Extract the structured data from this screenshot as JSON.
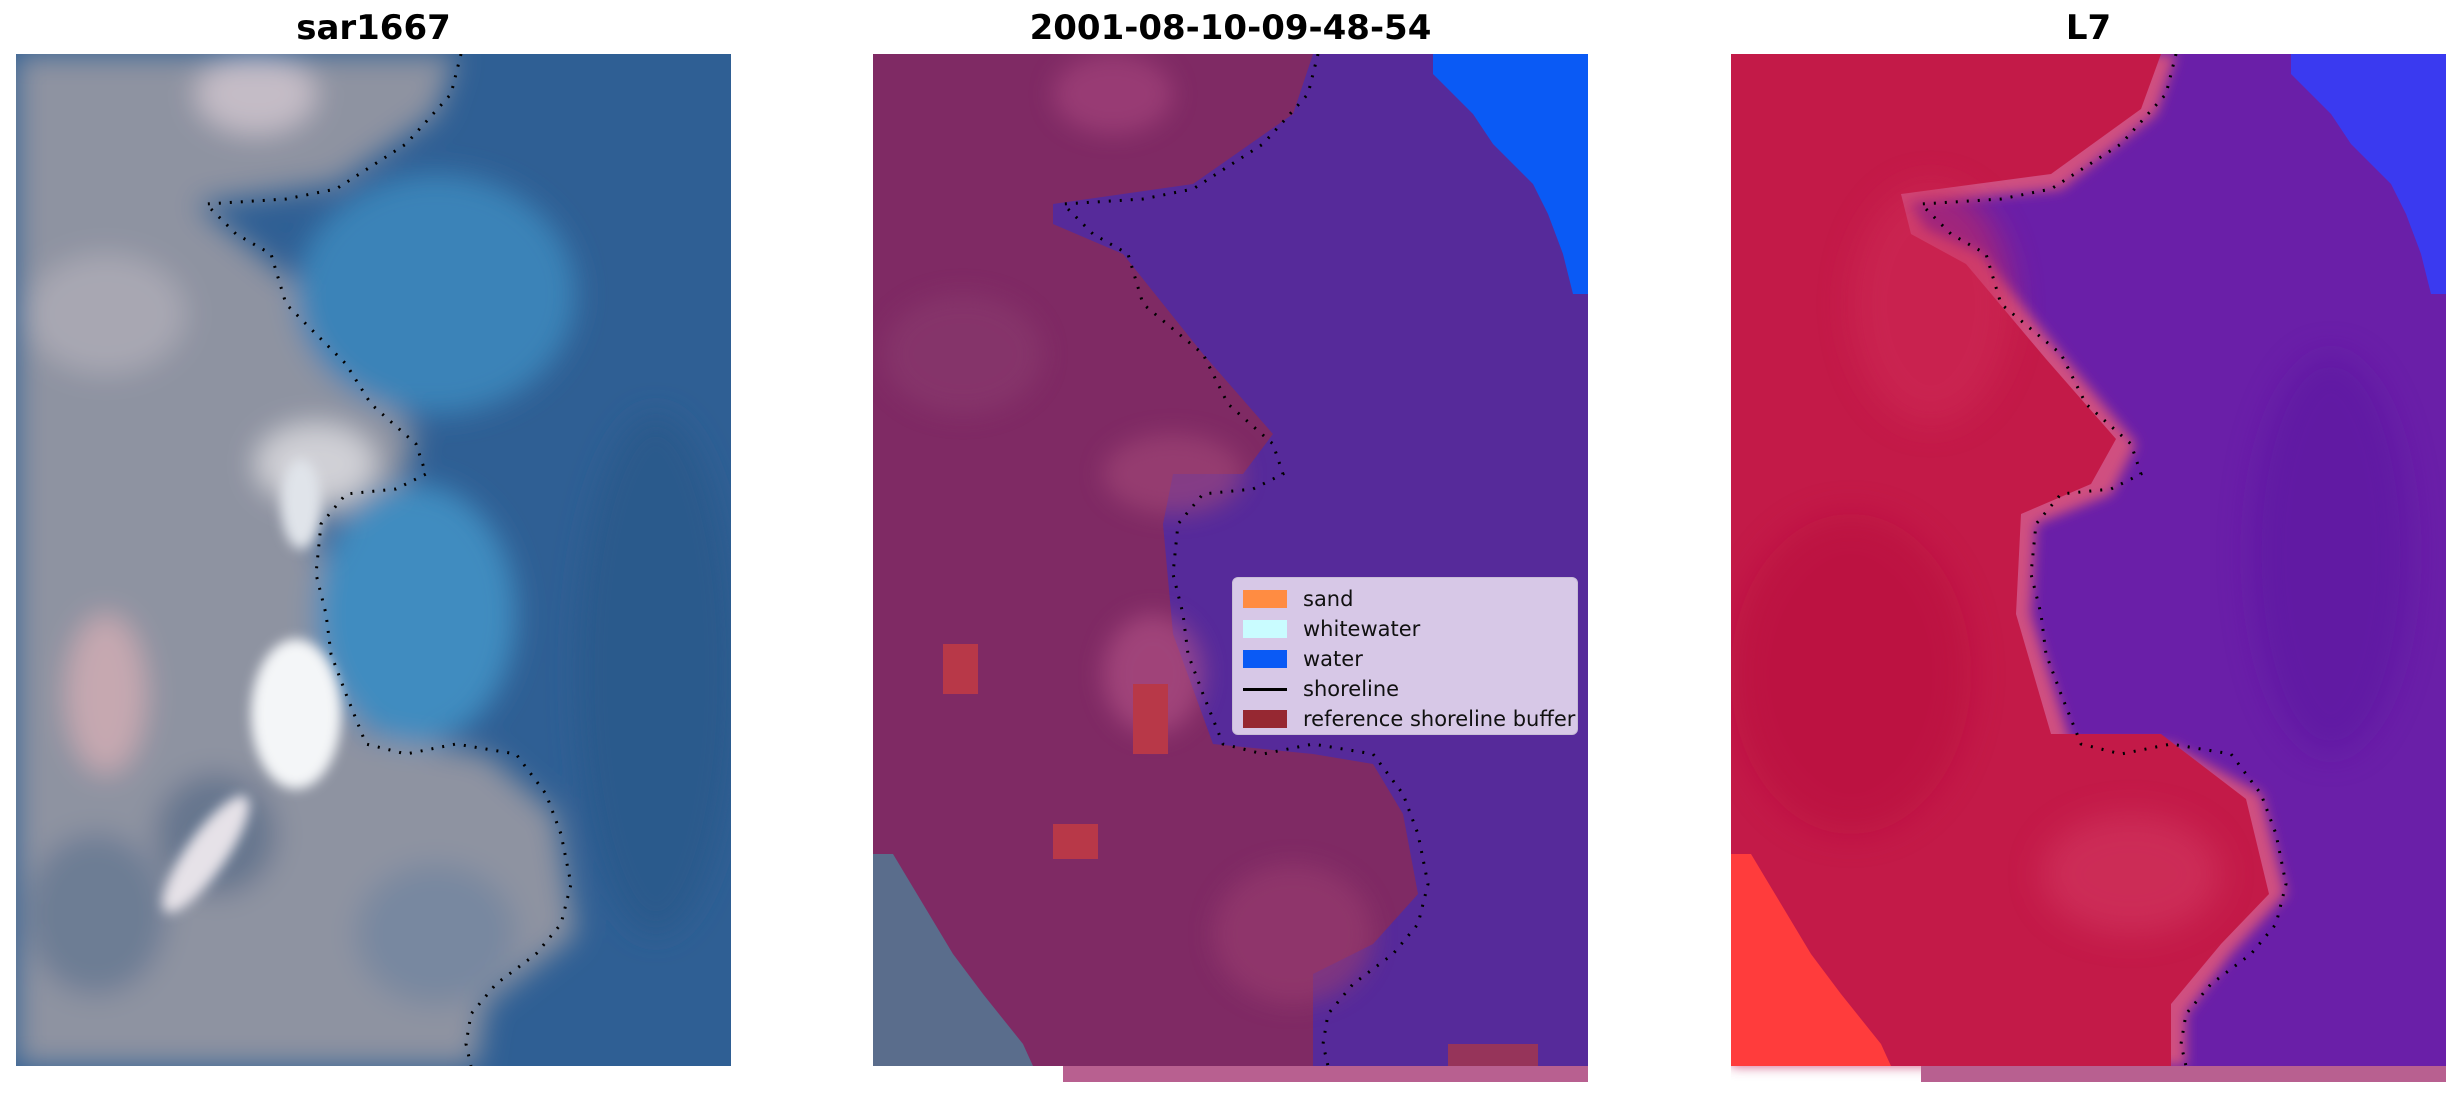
{
  "panels": [
    {
      "title": "sar1667",
      "image": "rgb-satellite-image"
    },
    {
      "title": "2001-08-10-09-48-54",
      "image": "classified-image"
    },
    {
      "title": "L7",
      "image": "false-color-image"
    }
  ],
  "legend": {
    "items": [
      {
        "label": "sand",
        "kind": "patch",
        "color": "#ff8c42"
      },
      {
        "label": "whitewater",
        "kind": "patch",
        "color": "#c9fcff"
      },
      {
        "label": "water",
        "kind": "patch",
        "color": "#0a5af5"
      },
      {
        "label": "shoreline",
        "kind": "line",
        "color": "#000000"
      },
      {
        "label": "reference shoreline buffer",
        "kind": "patch",
        "color": "#962832"
      }
    ]
  },
  "colors": {
    "water_rgb": "#2f5f94",
    "land_rgb": "#8d93a2",
    "classified_water": "#562a9a",
    "classified_land": "#7d2a64",
    "falsecolor_land": "#c31a48",
    "falsecolor_water": "#6a1fa8",
    "blue_corner": "#0a5af5"
  }
}
